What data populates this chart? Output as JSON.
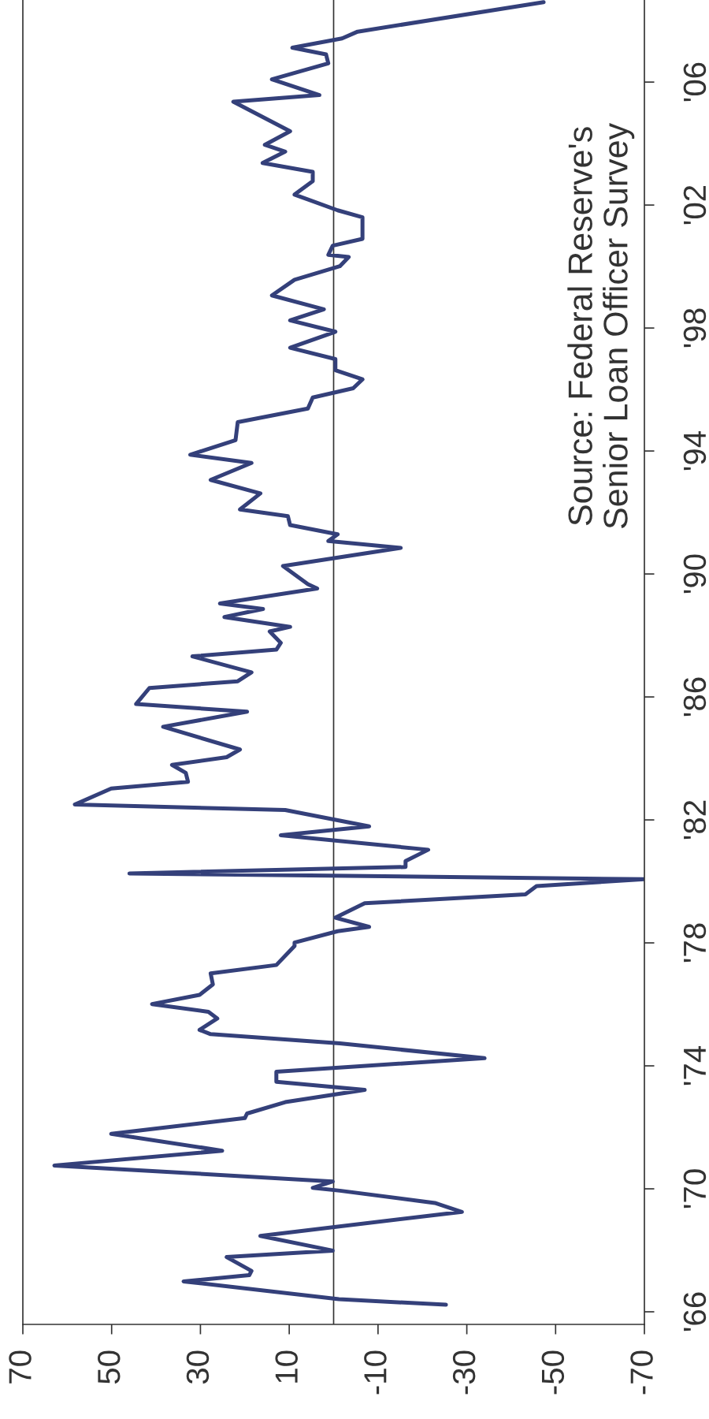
{
  "chart_data": {
    "type": "line",
    "annotations": [
      "Source: Federal Reserve's\nSenior Loan Officer Survey"
    ],
    "series": [
      {
        "color": "#34407a",
        "values": [
          1966.23,
          1966.41,
          1966.99,
          1967.19,
          1967.33,
          1967.78,
          1967.99,
          1968.47,
          1969.25,
          1969.54,
          1969.94,
          1970.03,
          1970.24,
          1970.76,
          1971.24,
          1971.79,
          1972.3,
          1972.45,
          1972.82,
          1973.22,
          1973.48,
          1973.81,
          1974.25,
          1974.73,
          1975.03,
          1975.17,
          1975.54,
          1975.76,
          1976.01,
          1976.31,
          1976.65,
          1977.01,
          1977.28,
          1977.9,
          1978.01,
          1978.38,
          1978.52,
          1978.82,
          1979.29,
          1979.58,
          1979.85,
          1980.07,
          1980.26,
          1980.47,
          1980.66,
          1981.03,
          1981.5,
          1981.79,
          1982.32,
          1982.5,
          1983.02,
          1983.24,
          1983.53,
          1983.79,
          1984.04,
          1984.29,
          1985.03,
          1985.52,
          1985.77,
          1986.29,
          1986.51,
          1986.8,
          1987.32,
          1987.54,
          1987.76,
          1988.13,
          1988.28,
          1988.6,
          1988.86,
          1989.04,
          1989.53,
          1989.67,
          1990.26,
          1990.85,
          1991.07,
          1991.29,
          1991.59,
          1991.88,
          1992.1,
          1992.62,
          1993.06,
          1993.61,
          1993.88,
          1994.35,
          1994.94,
          1995.38,
          1995.74,
          1996.04,
          1996.33,
          1996.63,
          1996.99,
          1997.36,
          1997.88,
          1998.25,
          1998.61,
          1999.06,
          1999.57,
          2000.01,
          2000.31,
          2000.38,
          2000.68,
          2000.9,
          2001.6,
          2001.83,
          2002.34,
          2002.78,
          2003.08,
          2003.37,
          2003.74,
          2003.96,
          2004.4,
          2005.36,
          2005.58,
          2006.09,
          2006.61,
          2006.9,
          2007.12,
          2007.42,
          2007.64,
          2008.6
        ],
        "x": [
          -25.3,
          -1.2,
          33.8,
          19.0,
          18.5,
          24.1,
          0.2,
          16.5,
          -28.9,
          -22.8,
          -1.4,
          4.7,
          0.2,
          62.9,
          25.1,
          50.1,
          20.0,
          19.5,
          10.9,
          -7.0,
          12.9,
          12.9,
          -34.0,
          -1.4,
          27.7,
          30.2,
          26.2,
          28.2,
          40.9,
          30.2,
          27.2,
          27.7,
          12.9,
          8.8,
          8.8,
          -0.9,
          -8.0,
          -0.4,
          -7.0,
          -43.2,
          -45.7,
          -70.0,
          46.0,
          -16.2,
          -16.2,
          -21.3,
          11.9,
          -8.0,
          10.9,
          58.3,
          50.1,
          32.8,
          33.3,
          36.4,
          24.1,
          21.1,
          38.4,
          19.5,
          44.5,
          41.5,
          21.6,
          18.5,
          31.8,
          12.9,
          11.9,
          14.4,
          9.8,
          24.6,
          15.9,
          25.6,
          3.7,
          5.8,
          11.4,
          -15.1,
          1.2,
          -0.9,
          9.8,
          10.3,
          21.1,
          16.5,
          27.7,
          18.5,
          32.3,
          22.1,
          21.6,
          5.8,
          4.7,
          -4.4,
          -6.5,
          -0.4,
          -0.4,
          9.8,
          -0.4,
          9.8,
          2.2,
          13.9,
          8.8,
          -1.4,
          -3.4,
          1.2,
          0.2,
          -6.5,
          -6.5,
          -0.9,
          8.8,
          4.7,
          4.7,
          16.0,
          10.9,
          15.5,
          9.8,
          22.6,
          3.2,
          13.9,
          1.2,
          1.7,
          9.3,
          -1.9,
          -5.4,
          -47.3
        ]
      }
    ],
    "ylim": [
      1965.59,
      2008.67
    ],
    "yticks": [
      {
        "value": 1966,
        "label": "'66"
      },
      {
        "value": 1970,
        "label": "'70"
      },
      {
        "value": 1974,
        "label": "'74"
      },
      {
        "value": 1978,
        "label": "'78"
      },
      {
        "value": 1982,
        "label": "'82"
      },
      {
        "value": 1986,
        "label": "'86"
      },
      {
        "value": 1990,
        "label": "'90"
      },
      {
        "value": 1994,
        "label": "'94"
      },
      {
        "value": 1998,
        "label": "'98"
      },
      {
        "value": 2002,
        "label": "'02"
      },
      {
        "value": 2006,
        "label": "'06"
      }
    ],
    "xlim": [
      70,
      -70
    ],
    "xticks": [
      70,
      50,
      30,
      10,
      -10,
      -30,
      -50,
      -70
    ],
    "ref_lines": [
      {
        "axis": "x",
        "value": 0,
        "color": "#333333"
      }
    ],
    "grid": false,
    "legend": false
  }
}
